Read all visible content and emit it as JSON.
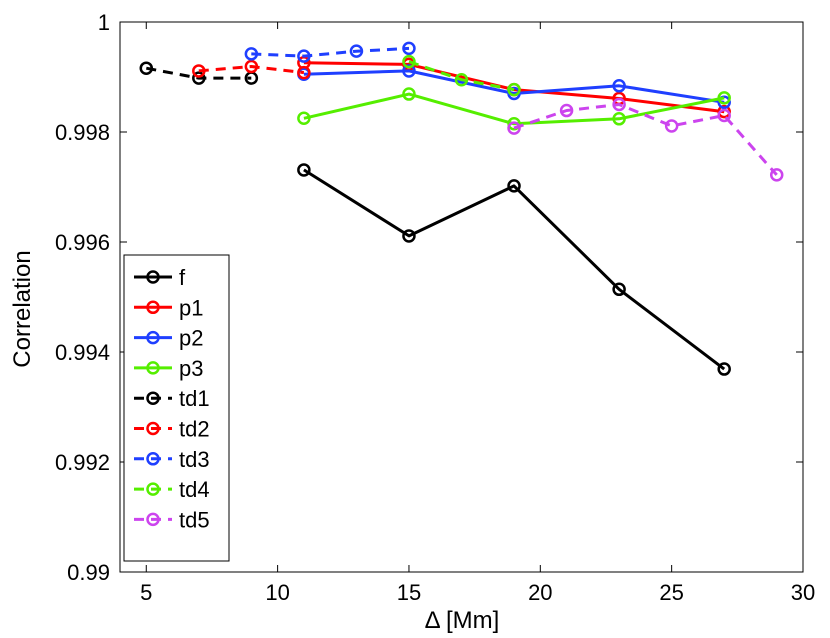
{
  "chart_data": {
    "type": "line",
    "title": "",
    "xlabel": "Δ  [Mm]",
    "ylabel": "Correlation",
    "xlim": [
      4,
      30
    ],
    "ylim": [
      0.99,
      1.0
    ],
    "xticks": [
      5,
      10,
      15,
      20,
      25,
      30
    ],
    "yticks": [
      0.99,
      0.992,
      0.994,
      0.996,
      0.998,
      1.0
    ],
    "xtick_labels": [
      "5",
      "10",
      "15",
      "20",
      "25",
      "30"
    ],
    "ytick_labels": [
      "0.99",
      "0.992",
      "0.994",
      "0.996",
      "0.998",
      "1"
    ],
    "grid": false,
    "legend_position": "lower-left",
    "series": [
      {
        "name": "f",
        "color": "#000000",
        "dashed": false,
        "x": [
          11,
          15,
          19,
          23,
          27
        ],
        "y": [
          0.99731,
          0.99611,
          0.99702,
          0.99514,
          0.99369
        ]
      },
      {
        "name": "p1",
        "color": "#ff0000",
        "dashed": false,
        "x": [
          11,
          15,
          19,
          23,
          27
        ],
        "y": [
          0.99926,
          0.99923,
          0.99877,
          0.99861,
          0.99837
        ]
      },
      {
        "name": "p2",
        "color": "#1f3fff",
        "dashed": false,
        "x": [
          11,
          15,
          19,
          23,
          27
        ],
        "y": [
          0.99905,
          0.99911,
          0.9987,
          0.99884,
          0.99854
        ]
      },
      {
        "name": "p3",
        "color": "#55ee00",
        "dashed": false,
        "x": [
          11,
          15,
          19,
          23,
          27
        ],
        "y": [
          0.99825,
          0.99869,
          0.99815,
          0.99824,
          0.99862
        ]
      },
      {
        "name": "td1",
        "color": "#000000",
        "dashed": true,
        "x": [
          5,
          7,
          9
        ],
        "y": [
          0.99916,
          0.99898,
          0.99898
        ]
      },
      {
        "name": "td2",
        "color": "#ff0000",
        "dashed": true,
        "x": [
          7,
          9,
          11
        ],
        "y": [
          0.99911,
          0.99919,
          0.99908
        ]
      },
      {
        "name": "td3",
        "color": "#1f3fff",
        "dashed": true,
        "x": [
          9,
          11,
          13,
          15
        ],
        "y": [
          0.99942,
          0.99938,
          0.99947,
          0.99952
        ]
      },
      {
        "name": "td4",
        "color": "#55ee00",
        "dashed": true,
        "x": [
          15,
          17,
          19
        ],
        "y": [
          0.99928,
          0.99895,
          0.99877
        ]
      },
      {
        "name": "td5",
        "color": "#cc44ee",
        "dashed": true,
        "x": [
          19,
          21,
          23,
          25,
          27,
          29
        ],
        "y": [
          0.99807,
          0.99839,
          0.9985,
          0.99811,
          0.9983,
          0.99722
        ]
      }
    ]
  }
}
